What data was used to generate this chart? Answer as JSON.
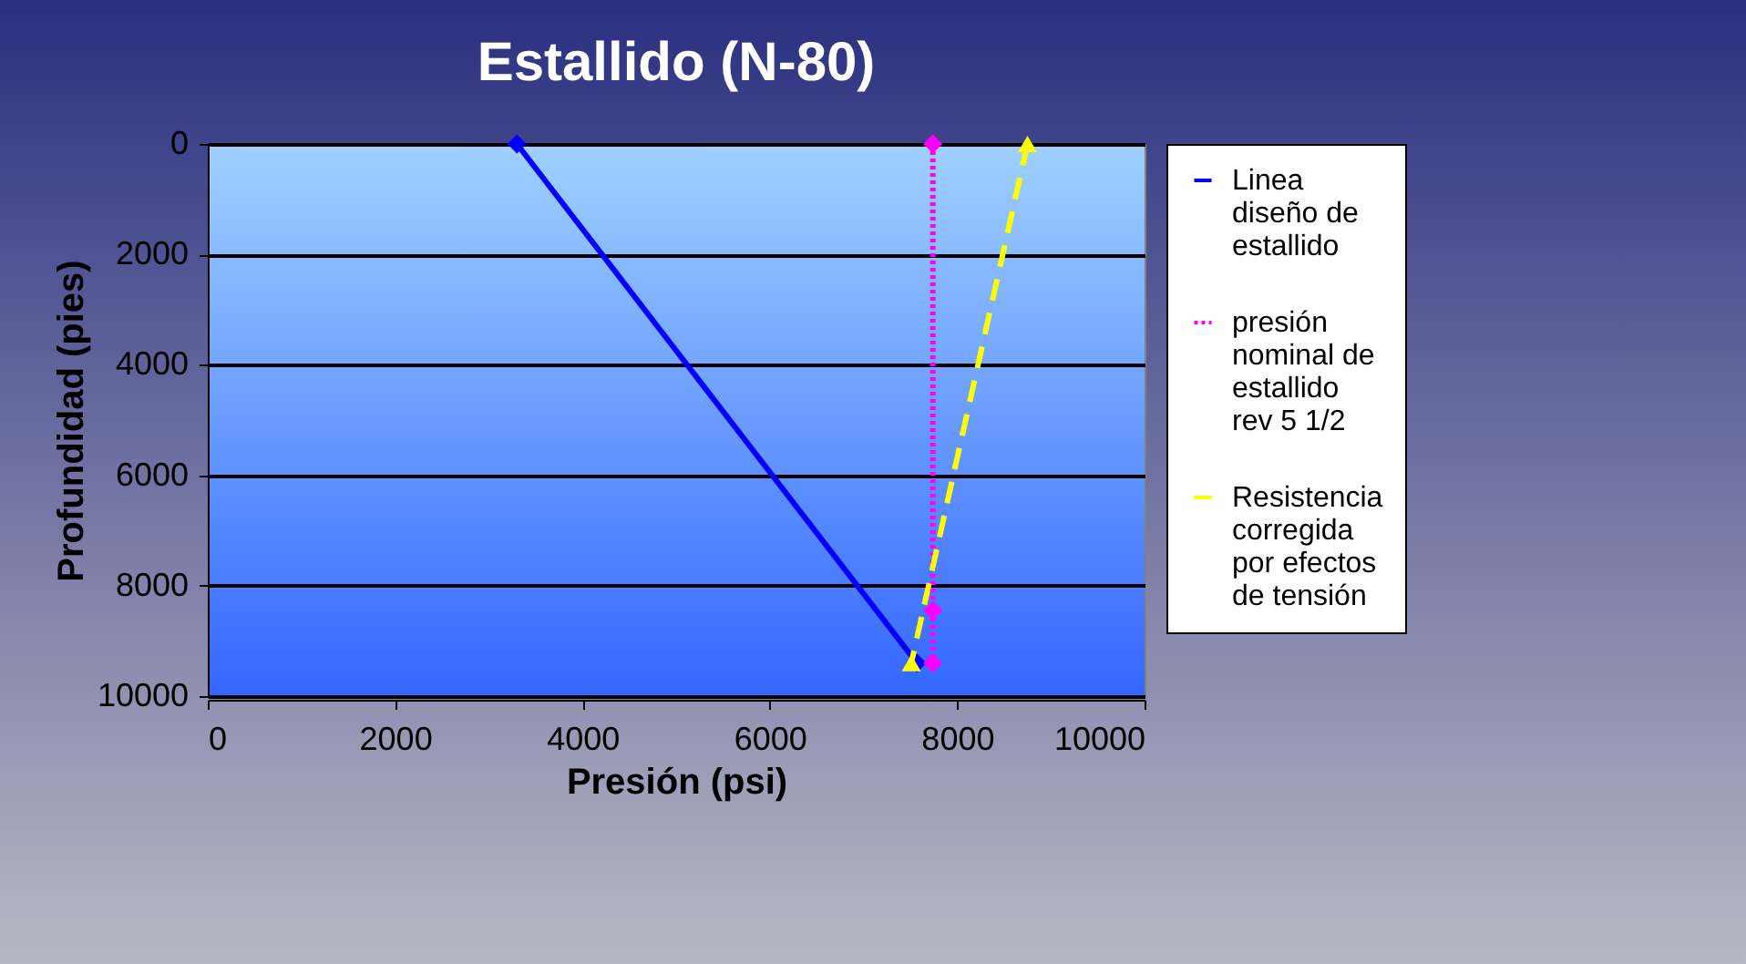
{
  "chart_data": {
    "type": "line",
    "title": "Estallido (N-80)",
    "xlabel": "Presión (psi)",
    "ylabel": "Profundidad (pies)",
    "xlim": [
      0,
      10000
    ],
    "xticks": [
      0,
      2000,
      4000,
      6000,
      8000,
      10000
    ],
    "ylim": [
      10000,
      0
    ],
    "yticks": [
      0,
      2000,
      4000,
      6000,
      8000,
      10000
    ],
    "grid": "y",
    "legend": "right",
    "series": [
      {
        "name": "Linea diseño de estallido",
        "color": "#0000ff",
        "x": [
          3300,
          7570
        ],
        "values": [
          0,
          9400
        ],
        "marker": "diamond",
        "line_style": "solid"
      },
      {
        "name": "presión nominal de estallido rev 5 1/2",
        "color": "#ff00ff",
        "x": [
          7740,
          7740,
          7740
        ],
        "values": [
          0,
          8450,
          9400
        ],
        "marker": "diamond",
        "line_style": "dotted"
      },
      {
        "name": "Resistencia corregida por efectos de tensión",
        "color": "#ffff00",
        "x": [
          8750,
          7510
        ],
        "values": [
          0,
          9400
        ],
        "marker": "triangle",
        "line_style": "dashed"
      }
    ]
  }
}
